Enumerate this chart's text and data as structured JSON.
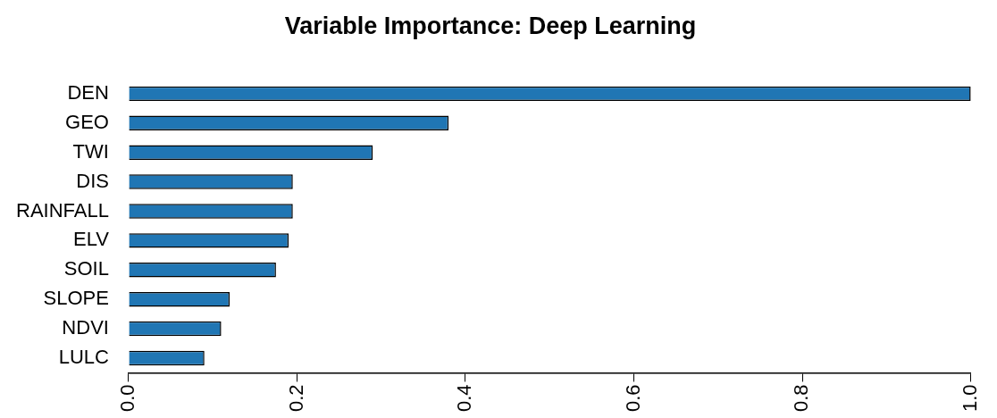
{
  "chart_data": {
    "type": "bar",
    "orientation": "horizontal",
    "title": "Variable Importance: Deep Learning",
    "categories": [
      "DEN",
      "GEO",
      "TWI",
      "DIS",
      "RAINFALL",
      "ELV",
      "SOIL",
      "SLOPE",
      "NDVI",
      "LULC"
    ],
    "values": [
      1.0,
      0.38,
      0.29,
      0.195,
      0.195,
      0.19,
      0.175,
      0.12,
      0.11,
      0.09
    ],
    "color": "#2076b4",
    "xlim": [
      0,
      1
    ],
    "xticks": [
      {
        "value": 0,
        "label": "0.0"
      },
      {
        "value": 0.2,
        "label": "0.2"
      },
      {
        "value": 0.4,
        "label": "0.4"
      },
      {
        "value": 0.6,
        "label": "0.6"
      },
      {
        "value": 0.8,
        "label": "0.8"
      },
      {
        "value": 1,
        "label": "1.0"
      }
    ],
    "grid": false,
    "legend": false
  }
}
